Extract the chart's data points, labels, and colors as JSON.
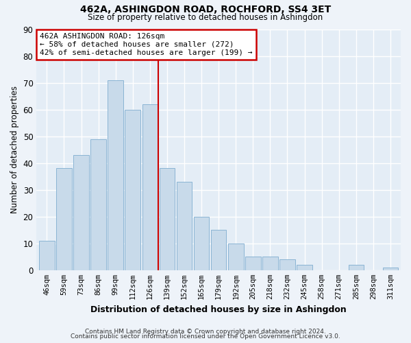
{
  "title": "462A, ASHINGDON ROAD, ROCHFORD, SS4 3ET",
  "subtitle": "Size of property relative to detached houses in Ashingdon",
  "xlabel": "Distribution of detached houses by size in Ashingdon",
  "ylabel": "Number of detached properties",
  "bar_labels": [
    "46sqm",
    "59sqm",
    "73sqm",
    "86sqm",
    "99sqm",
    "112sqm",
    "126sqm",
    "139sqm",
    "152sqm",
    "165sqm",
    "179sqm",
    "192sqm",
    "205sqm",
    "218sqm",
    "232sqm",
    "245sqm",
    "258sqm",
    "271sqm",
    "285sqm",
    "298sqm",
    "311sqm"
  ],
  "bar_values": [
    11,
    38,
    43,
    49,
    71,
    60,
    62,
    38,
    33,
    20,
    15,
    10,
    5,
    5,
    4,
    2,
    0,
    0,
    2,
    0,
    1
  ],
  "bar_color": "#c8daea",
  "bar_edge_color": "#8ab4d4",
  "reference_line_x": 6.5,
  "reference_line_color": "#cc0000",
  "annotation_title": "462A ASHINGDON ROAD: 126sqm",
  "annotation_line1": "← 58% of detached houses are smaller (272)",
  "annotation_line2": "42% of semi-detached houses are larger (199) →",
  "annotation_box_edgecolor": "#cc0000",
  "annotation_box_facecolor": "#ffffff",
  "ylim": [
    0,
    90
  ],
  "yticks": [
    0,
    10,
    20,
    30,
    40,
    50,
    60,
    70,
    80,
    90
  ],
  "footer_line1": "Contains HM Land Registry data © Crown copyright and database right 2024.",
  "footer_line2": "Contains public sector information licensed under the Open Government Licence v3.0.",
  "bg_color": "#eef3f9",
  "plot_bg_color": "#e4edf6"
}
